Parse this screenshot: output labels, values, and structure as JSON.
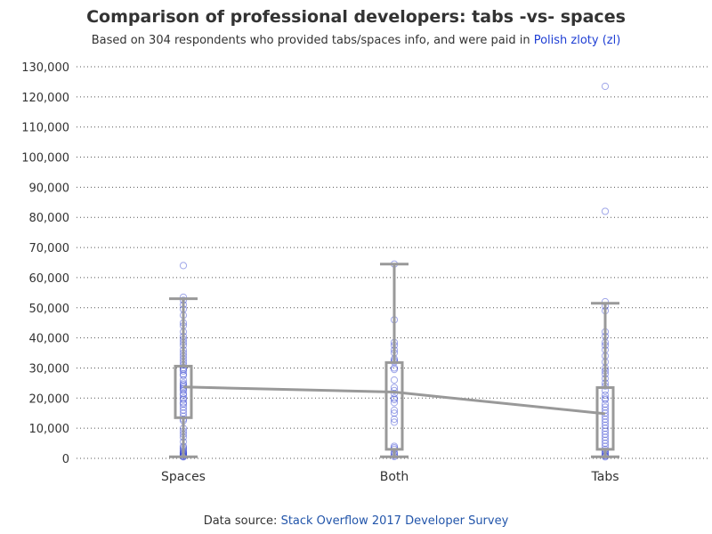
{
  "title": "Comparison of professional developers: tabs -vs- spaces",
  "subtitle_prefix": "Based on 304 respondents who provided tabs/spaces info, and were paid in ",
  "subtitle_currency": "Polish zloty (zl)",
  "source_prefix": "Data source: ",
  "source_link": "Stack Overflow 2017 Developer Survey",
  "colors": {
    "box": "#999999",
    "median_line": "#999999",
    "points": "#2d3bcf",
    "grid": "#555555",
    "currency_text": "#1f3fd4",
    "source_link": "#2255aa"
  },
  "chart_data": {
    "type": "box",
    "categories": [
      "Spaces",
      "Both",
      "Tabs"
    ],
    "ylim": [
      0,
      130000
    ],
    "yticks": [
      0,
      10000,
      20000,
      30000,
      40000,
      50000,
      60000,
      70000,
      80000,
      90000,
      100000,
      110000,
      120000,
      130000
    ],
    "ytick_labels": [
      "0",
      "10,000",
      "20,000",
      "30,000",
      "40,000",
      "50,000",
      "60,000",
      "70,000",
      "80,000",
      "90,000",
      "100,000",
      "110,000",
      "120,000",
      "130,000"
    ],
    "grid": "horizontal-dotted",
    "boxes": [
      {
        "name": "Spaces",
        "min": 500,
        "q1": 13500,
        "median": 23700,
        "q3": 30600,
        "max": 53000
      },
      {
        "name": "Both",
        "min": 500,
        "q1": 3000,
        "median": 22000,
        "q3": 31800,
        "max": 64500
      },
      {
        "name": "Tabs",
        "min": 500,
        "q1": 3000,
        "median": 14800,
        "q3": 23500,
        "max": 51500
      }
    ],
    "points": [
      {
        "category": "Spaces",
        "values": [
          64000,
          53500,
          52500,
          51000,
          49500,
          47500,
          45000,
          44000,
          42000,
          40500,
          39500,
          38500,
          37500,
          36000,
          35000,
          34000,
          33000,
          32000,
          31000,
          30000,
          29500,
          29000,
          28000,
          27500,
          26000,
          25000,
          24500,
          24000,
          23500,
          23000,
          22500,
          21500,
          21000,
          20000,
          19500,
          18500,
          18000,
          17000,
          16000,
          15000,
          14000,
          13000,
          12500,
          10000,
          9000,
          8000,
          7000,
          5500,
          4000,
          3500,
          3000,
          2500,
          2000,
          1800,
          1500,
          1200,
          1000,
          800,
          600,
          500
        ]
      },
      {
        "category": "Both",
        "values": [
          64500,
          46000,
          38500,
          37500,
          36000,
          35000,
          33000,
          32500,
          32000,
          30000,
          29500,
          26000,
          23500,
          22500,
          21500,
          20000,
          19500,
          18500,
          16000,
          15000,
          13000,
          12000,
          4000,
          3500,
          3000,
          2000,
          1500,
          1000,
          600
        ]
      },
      {
        "category": "Tabs",
        "values": [
          123500,
          82000,
          52000,
          50500,
          49000,
          42000,
          40500,
          38500,
          37500,
          36000,
          34000,
          32000,
          30000,
          29000,
          28000,
          26500,
          25000,
          24000,
          22500,
          21000,
          20000,
          19500,
          18000,
          17000,
          16000,
          15000,
          14000,
          13000,
          12000,
          11000,
          10000,
          9000,
          8000,
          7000,
          6000,
          5000,
          4000,
          3000,
          2500,
          2000,
          1500,
          1000,
          800,
          500
        ]
      }
    ]
  }
}
